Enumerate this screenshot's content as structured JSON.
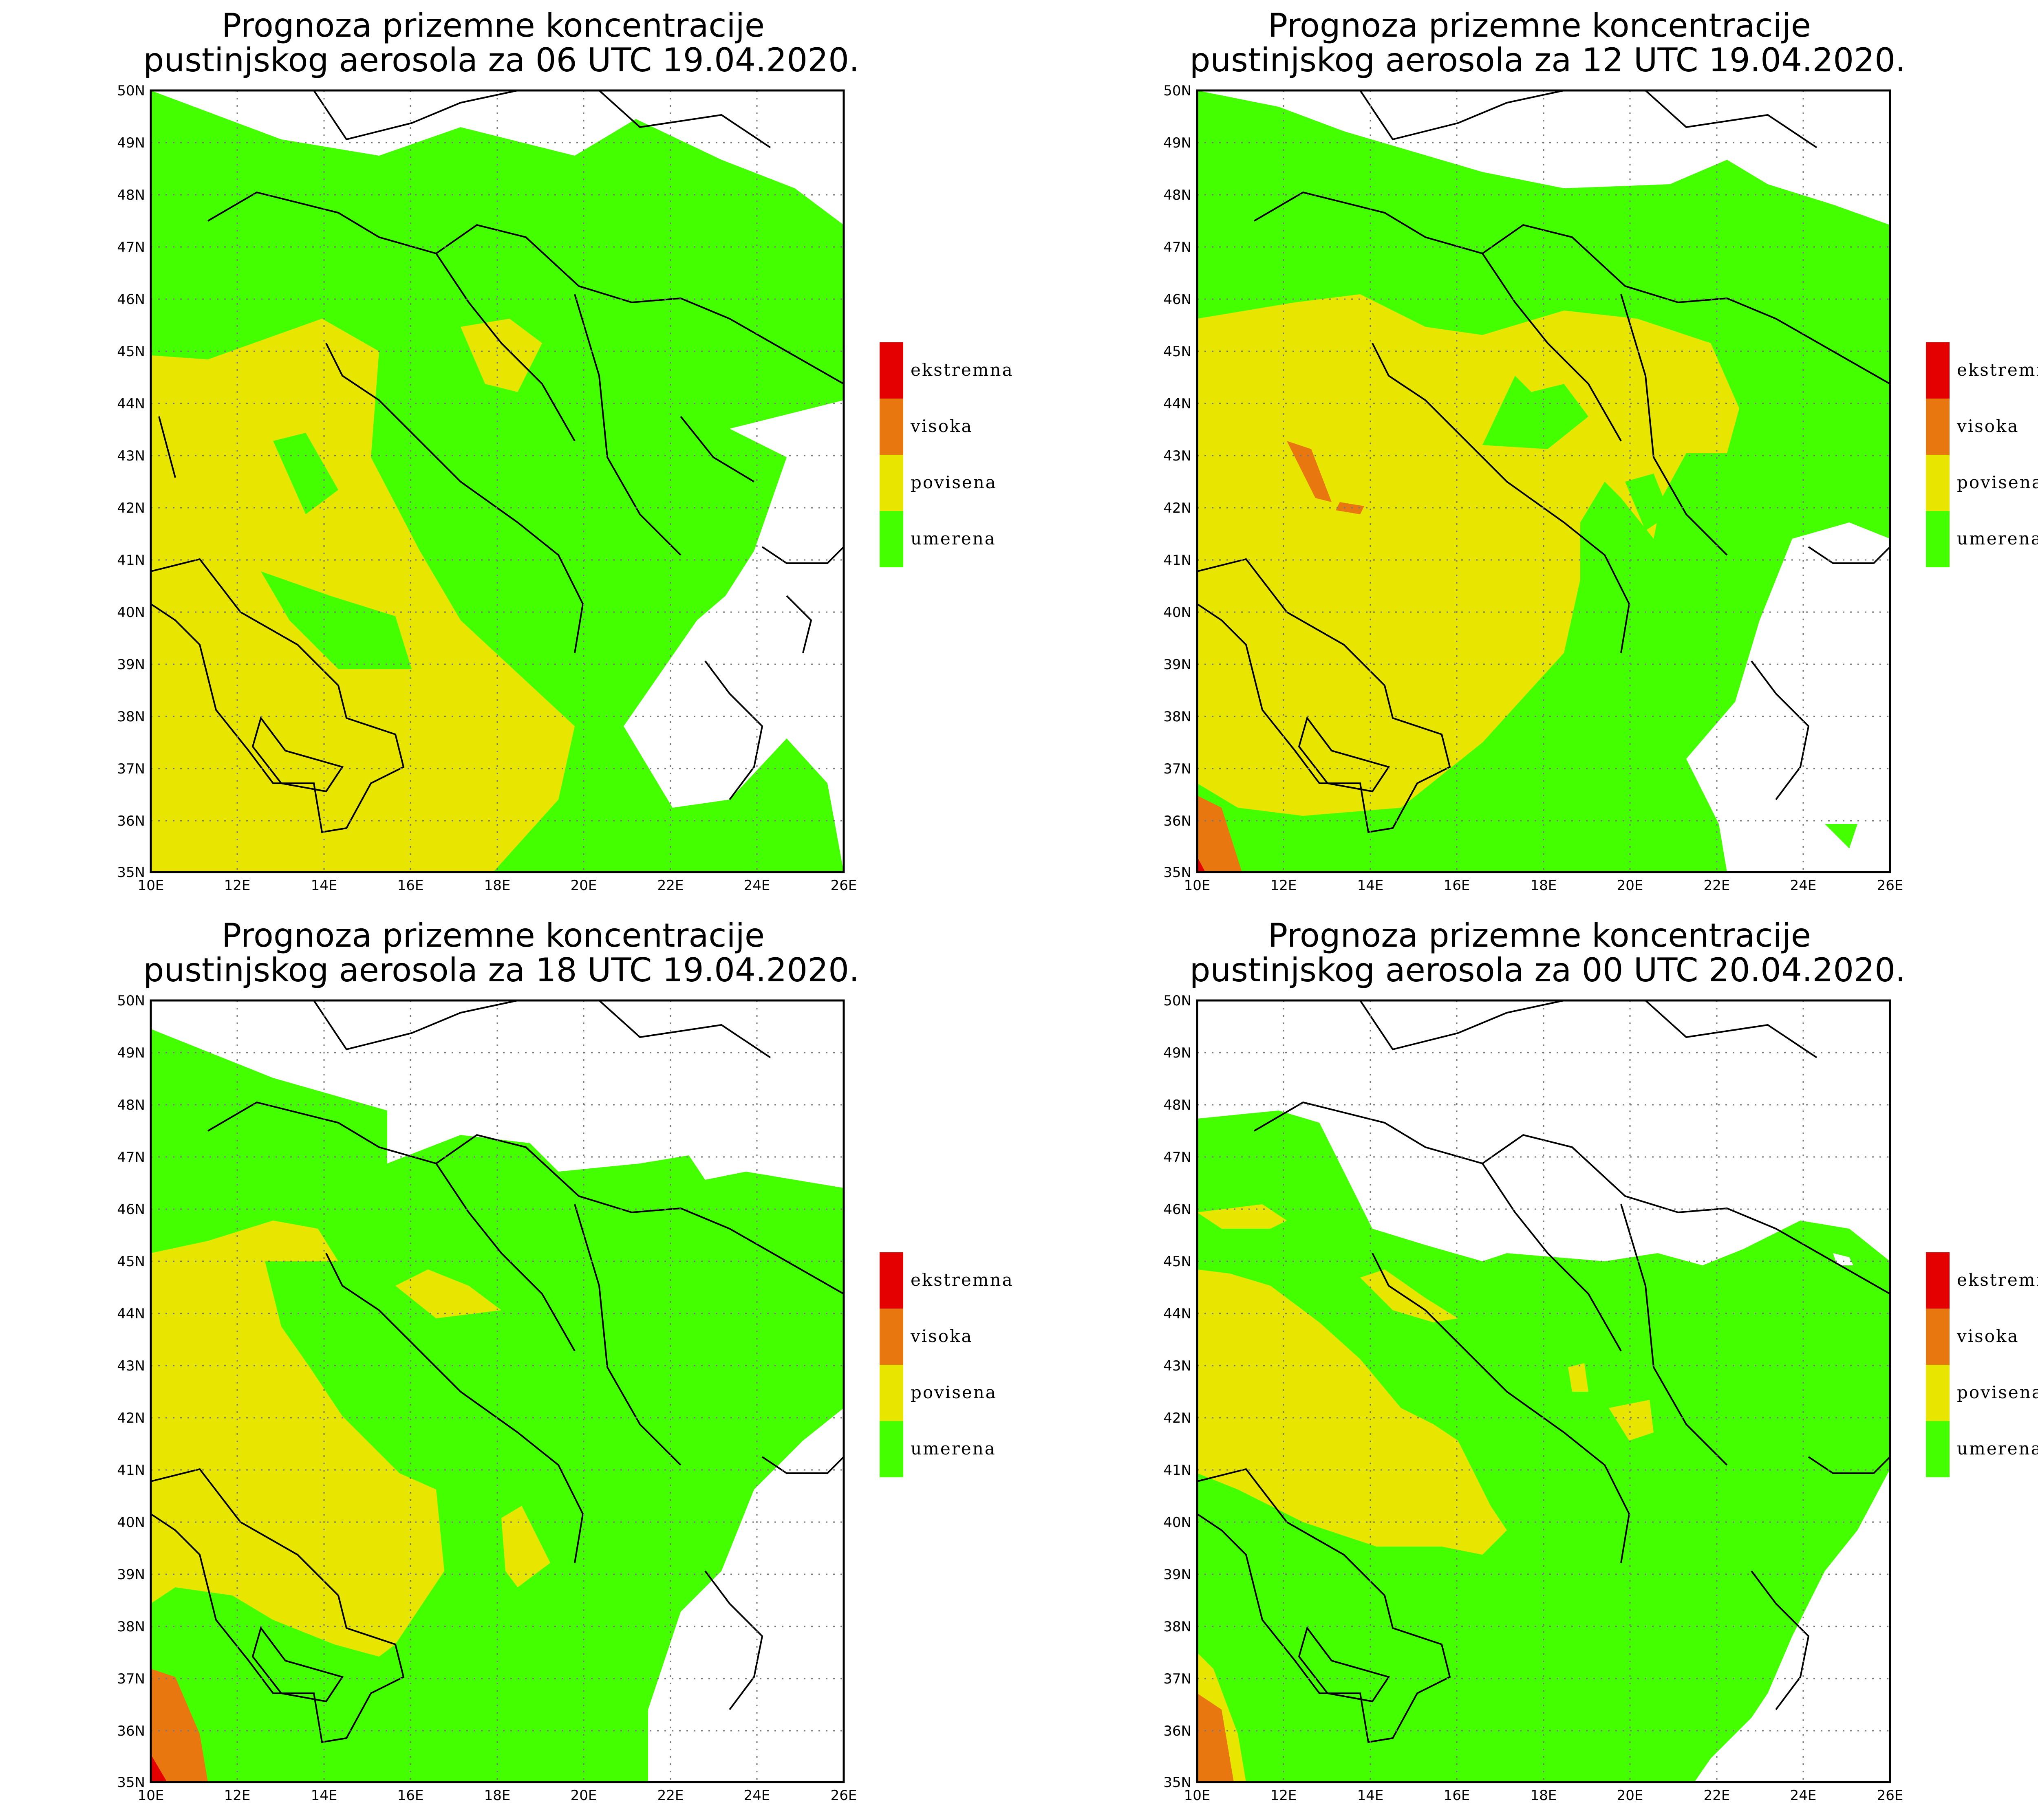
{
  "panels": [
    {
      "title_line1": "Prognoza prizemne koncentracije",
      "title_line2": "pustinjskog aerosola za 06 UTC 19.04.2020."
    },
    {
      "title_line1": "Prognoza prizemne koncentracije",
      "title_line2": "pustinjskog aerosola za 12 UTC 19.04.2020."
    },
    {
      "title_line1": "Prognoza prizemne koncentracije",
      "title_line2": "pustinjskog aerosola za 18 UTC 19.04.2020."
    },
    {
      "title_line1": "Prognoza prizemne koncentracije",
      "title_line2": "pustinjskog aerosola za 00 UTC 20.04.2020."
    }
  ],
  "lat_labels": [
    "50N",
    "49N",
    "48N",
    "47N",
    "46N",
    "45N",
    "44N",
    "43N",
    "42N",
    "41N",
    "40N",
    "39N",
    "38N",
    "37N",
    "36N",
    "35N"
  ],
  "lon_labels": [
    "10E",
    "12E",
    "14E",
    "16E",
    "18E",
    "20E",
    "22E",
    "24E",
    "26E"
  ],
  "legend": [
    {
      "label": "ekstremna",
      "color": "#e50000"
    },
    {
      "label": "visoka",
      "color": "#e87710"
    },
    {
      "label": "povisena",
      "color": "#e8e600"
    },
    {
      "label": "umerena",
      "color": "#44ff00"
    }
  ]
}
